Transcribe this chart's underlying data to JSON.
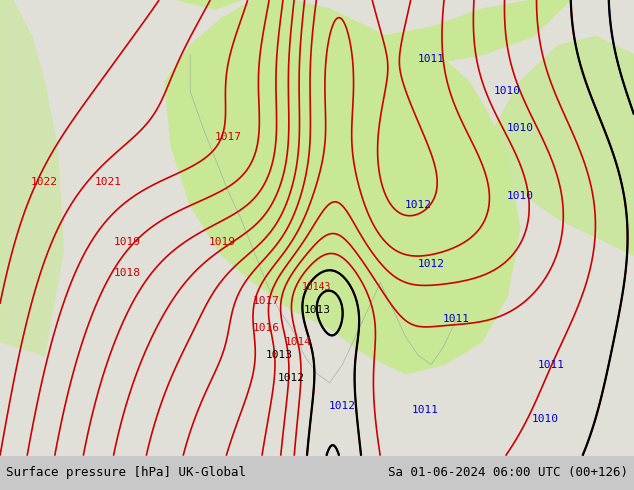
{
  "title_left": "Surface pressure [hPa] UK-Global",
  "title_right": "Sa 01-06-2024 06:00 UTC (00+126)",
  "bg_color": "#f0f0e8",
  "sea_color": "#e0e0d8",
  "land_color": "#c8e896",
  "red_contour_color": "#cc0000",
  "black_contour_color": "#000000",
  "blue_contour_color": "#0000cc",
  "bottom_bar_color": "#c8c8c8",
  "label_fontsize": 8,
  "title_fontsize": 9,
  "figsize": [
    6.34,
    4.9
  ],
  "dpi": 100
}
